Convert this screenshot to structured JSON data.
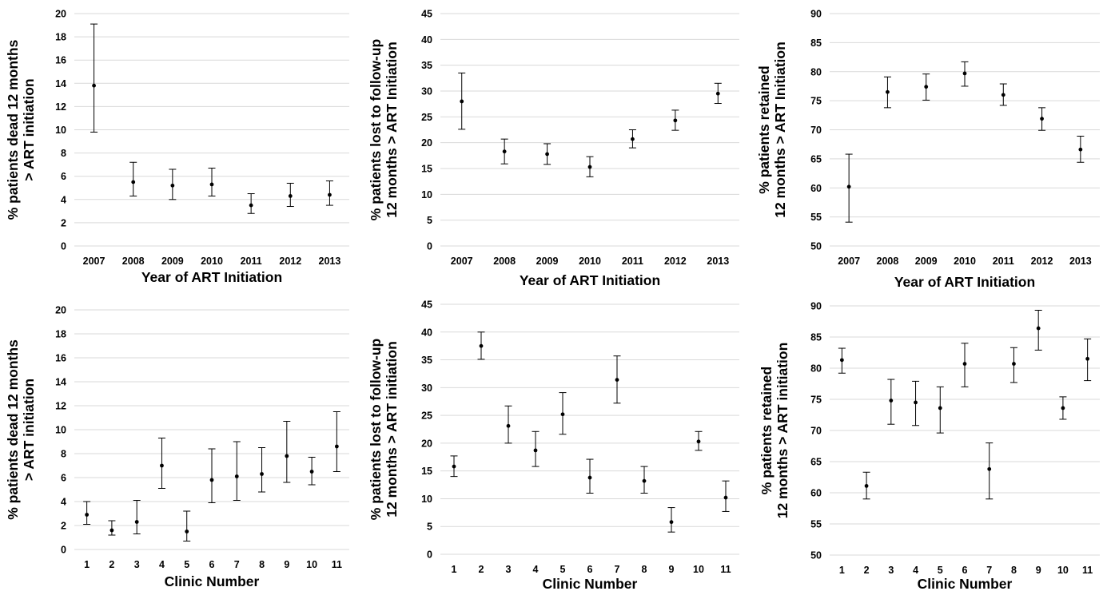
{
  "chart_data": [
    {
      "type": "scatter",
      "panel": "top-left",
      "xlabel": "Year of ART Initiation",
      "ylabel": [
        "% patients dead 12 months",
        "> ART initiation"
      ],
      "ylim": [
        0,
        20
      ],
      "yticks": [
        0,
        2,
        4,
        6,
        8,
        10,
        12,
        14,
        16,
        18,
        20
      ],
      "grid": true,
      "categories": [
        "2007",
        "2008",
        "2009",
        "2010",
        "2011",
        "2012",
        "2013"
      ],
      "values": [
        13.8,
        5.5,
        5.2,
        5.3,
        3.5,
        4.3,
        4.4
      ],
      "lower": [
        9.8,
        4.3,
        4.0,
        4.3,
        2.8,
        3.4,
        3.5
      ],
      "upper": [
        19.1,
        7.2,
        6.6,
        6.7,
        4.5,
        5.4,
        5.6
      ]
    },
    {
      "type": "scatter",
      "panel": "top-middle",
      "xlabel": "Year of ART Initiation",
      "ylabel": [
        "% patients lost to follow-up",
        "12 months > ART Initiation"
      ],
      "ylim": [
        0,
        45
      ],
      "yticks": [
        0,
        5,
        10,
        15,
        20,
        25,
        30,
        35,
        40,
        45
      ],
      "grid": true,
      "categories": [
        "2007",
        "2008",
        "2009",
        "2010",
        "2011",
        "2012",
        "2013"
      ],
      "values": [
        28.0,
        18.3,
        17.8,
        15.3,
        20.7,
        24.3,
        29.5
      ],
      "lower": [
        22.6,
        15.9,
        15.8,
        13.4,
        19.0,
        22.4,
        27.6
      ],
      "upper": [
        33.5,
        20.7,
        19.8,
        17.3,
        22.5,
        26.3,
        31.5
      ]
    },
    {
      "type": "scatter",
      "panel": "top-right",
      "xlabel": "Year of ART Initiation",
      "ylabel": [
        "% patients retained",
        "12 months > ART Initiation"
      ],
      "ylim": [
        50,
        90
      ],
      "yticks": [
        50,
        55,
        60,
        65,
        70,
        75,
        80,
        85,
        90
      ],
      "grid": true,
      "categories": [
        "2007",
        "2008",
        "2009",
        "2010",
        "2011",
        "2012",
        "2013"
      ],
      "values": [
        60.2,
        76.5,
        77.4,
        79.7,
        76.0,
        71.9,
        66.6
      ],
      "lower": [
        54.1,
        73.8,
        75.1,
        77.5,
        74.2,
        69.9,
        64.4
      ],
      "upper": [
        65.8,
        79.1,
        79.6,
        81.7,
        77.9,
        73.8,
        68.9
      ]
    },
    {
      "type": "scatter",
      "panel": "bottom-left",
      "xlabel": "Clinic Number",
      "ylabel": [
        "% patients dead 12 months",
        "> ART initiation"
      ],
      "ylim": [
        0,
        20
      ],
      "yticks": [
        0,
        2,
        4,
        6,
        8,
        10,
        12,
        14,
        16,
        18,
        20
      ],
      "grid": true,
      "categories": [
        "1",
        "2",
        "3",
        "4",
        "5",
        "6",
        "7",
        "8",
        "9",
        "10",
        "11"
      ],
      "values": [
        2.9,
        1.6,
        2.3,
        7.0,
        1.5,
        5.8,
        6.1,
        6.3,
        7.8,
        6.5,
        8.6
      ],
      "lower": [
        2.1,
        1.2,
        1.3,
        5.1,
        0.7,
        3.9,
        4.1,
        4.8,
        5.6,
        5.4,
        6.5
      ],
      "upper": [
        4.0,
        2.4,
        4.1,
        9.3,
        3.2,
        8.4,
        9.0,
        8.5,
        10.7,
        7.7,
        11.5
      ]
    },
    {
      "type": "scatter",
      "panel": "bottom-middle",
      "xlabel": "Clinic Number",
      "ylabel": [
        "% patients lost to follow-up",
        "12 months > ART initiation"
      ],
      "ylim": [
        0,
        45
      ],
      "yticks": [
        0,
        5,
        10,
        15,
        20,
        25,
        30,
        35,
        40,
        45
      ],
      "grid": true,
      "categories": [
        "1",
        "2",
        "3",
        "4",
        "5",
        "6",
        "7",
        "8",
        "9",
        "10",
        "11"
      ],
      "values": [
        15.8,
        37.5,
        23.1,
        18.7,
        25.2,
        13.8,
        31.4,
        13.2,
        5.8,
        20.3,
        10.2
      ],
      "lower": [
        14.0,
        35.1,
        20.0,
        15.8,
        21.6,
        11.0,
        27.2,
        11.0,
        4.0,
        18.7,
        7.7
      ],
      "upper": [
        17.7,
        40.0,
        26.7,
        22.1,
        29.1,
        17.1,
        35.7,
        15.8,
        8.4,
        22.1,
        13.2
      ]
    },
    {
      "type": "scatter",
      "panel": "bottom-right",
      "xlabel": "Clinic Number",
      "ylabel": [
        "% patients retained",
        "12 months > ART initiation"
      ],
      "ylim": [
        50,
        90
      ],
      "yticks": [
        50,
        55,
        60,
        65,
        70,
        75,
        80,
        85,
        90
      ],
      "grid": true,
      "categories": [
        "1",
        "2",
        "3",
        "4",
        "5",
        "6",
        "7",
        "8",
        "9",
        "10",
        "11"
      ],
      "values": [
        81.3,
        61.1,
        74.8,
        74.5,
        73.6,
        80.7,
        63.8,
        80.7,
        86.4,
        73.6,
        81.5
      ],
      "lower": [
        79.2,
        59.0,
        71.0,
        70.8,
        69.6,
        77.0,
        59.0,
        77.7,
        82.9,
        71.8,
        78.0
      ],
      "upper": [
        83.2,
        63.3,
        78.2,
        77.9,
        77.0,
        84.0,
        68.0,
        83.3,
        89.3,
        75.4,
        84.7
      ]
    }
  ]
}
